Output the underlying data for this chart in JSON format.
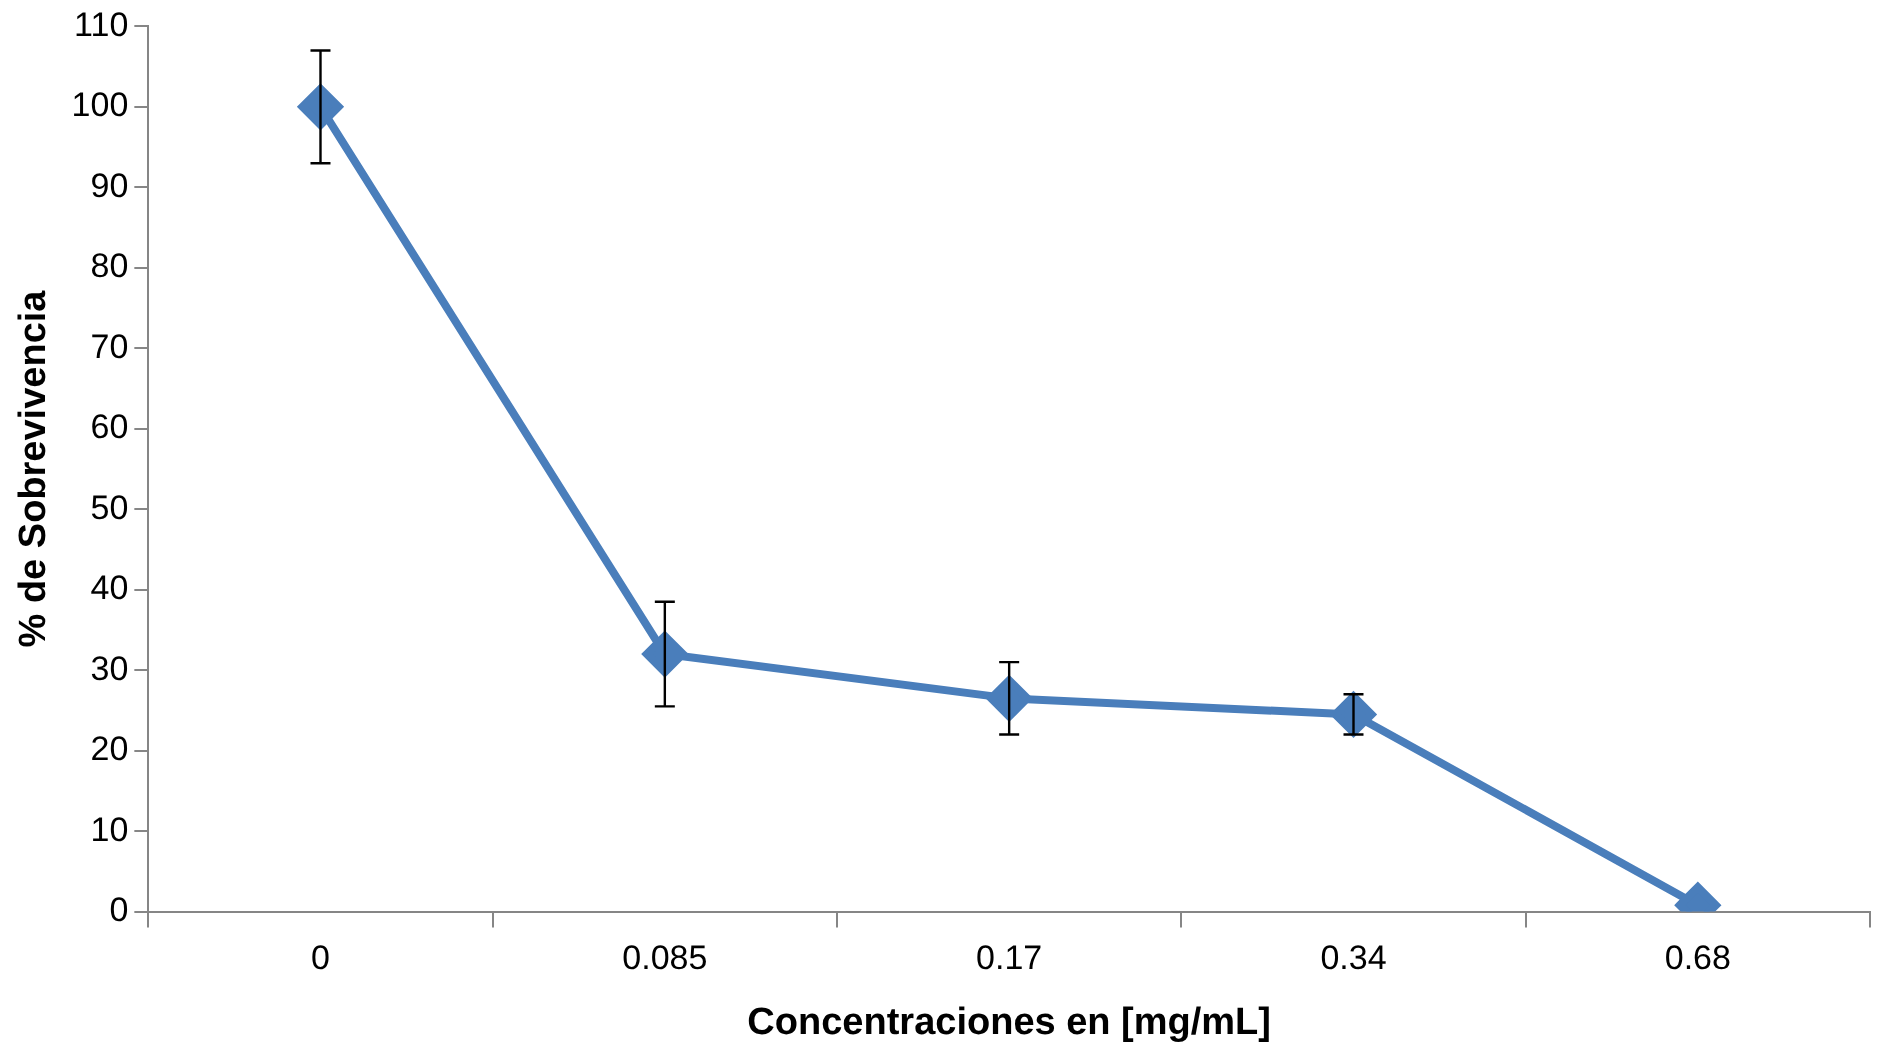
{
  "chart_data": {
    "type": "line",
    "xlabel": "Concentraciones en [mg/mL]",
    "ylabel": "% de Sobrevivencia",
    "categories": [
      "0",
      "0.085",
      "0.17",
      "0.34",
      "0.68"
    ],
    "series": [
      {
        "color": "#4a7ebb",
        "values": [
          100,
          32,
          26.5,
          24.5,
          0.8
        ],
        "errors": [
          7,
          6.5,
          4.5,
          2.5,
          null
        ]
      }
    ],
    "ylim": [
      0,
      110
    ],
    "yticks": [
      0,
      10,
      20,
      30,
      40,
      50,
      60,
      70,
      80,
      90,
      100,
      110
    ],
    "grid": false,
    "legend": false,
    "marker": "diamond",
    "line_style": "solid"
  }
}
